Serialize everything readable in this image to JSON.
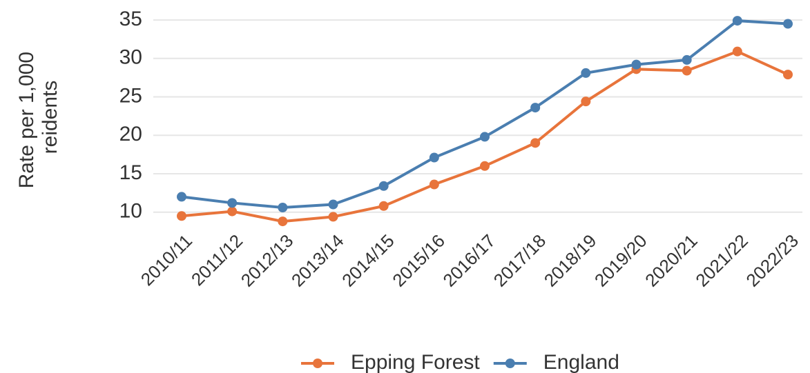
{
  "chart_data": {
    "type": "line",
    "ylabel": [
      "Rate per 1,000",
      "reidents"
    ],
    "categories": [
      "2010/11",
      "2011/12",
      "2012/13",
      "2013/14",
      "2014/15",
      "2015/16",
      "2016/17",
      "2017/18",
      "2018/19",
      "2019/20",
      "2020/21",
      "2021/22",
      "2022/23"
    ],
    "series": [
      {
        "name": "Epping Forest",
        "color": "#e8743b",
        "values": [
          9.5,
          10.1,
          8.8,
          9.4,
          10.8,
          13.6,
          16.0,
          19.0,
          24.4,
          28.6,
          28.4,
          30.9,
          27.9
        ]
      },
      {
        "name": "England",
        "color": "#4a7eb0",
        "values": [
          12.0,
          11.2,
          10.6,
          11.0,
          13.4,
          17.1,
          19.8,
          23.6,
          28.1,
          29.2,
          29.8,
          34.9,
          34.5
        ]
      }
    ],
    "ylim": [
      8,
      36.7
    ],
    "yticks": [
      10,
      15,
      20,
      25,
      30,
      35
    ],
    "grid": true,
    "legend": "bottom"
  }
}
